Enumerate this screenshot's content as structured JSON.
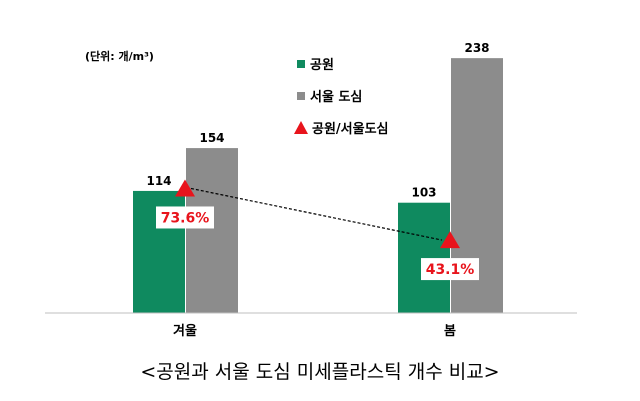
{
  "chart_data": {
    "type": "bar",
    "unit_label": "(단위: 개/m³)",
    "categories": [
      "겨울",
      "봄"
    ],
    "series": [
      {
        "name": "공원",
        "values": [
          114,
          103
        ],
        "color": "#0f8a5f"
      },
      {
        "name": "서울 도심",
        "values": [
          154,
          238
        ],
        "color": "#8c8c8c"
      }
    ],
    "ratio_series": {
      "name": "공원/서울도심",
      "values": [
        73.6,
        43.1
      ],
      "labels": [
        "73.6%",
        "43.1%"
      ],
      "color": "#e8141c"
    },
    "ylim": [
      0,
      240
    ],
    "grid": false,
    "legend": "top-right",
    "caption": "<공원과 서울 도심 미세플라스틱 개수 비교>"
  }
}
